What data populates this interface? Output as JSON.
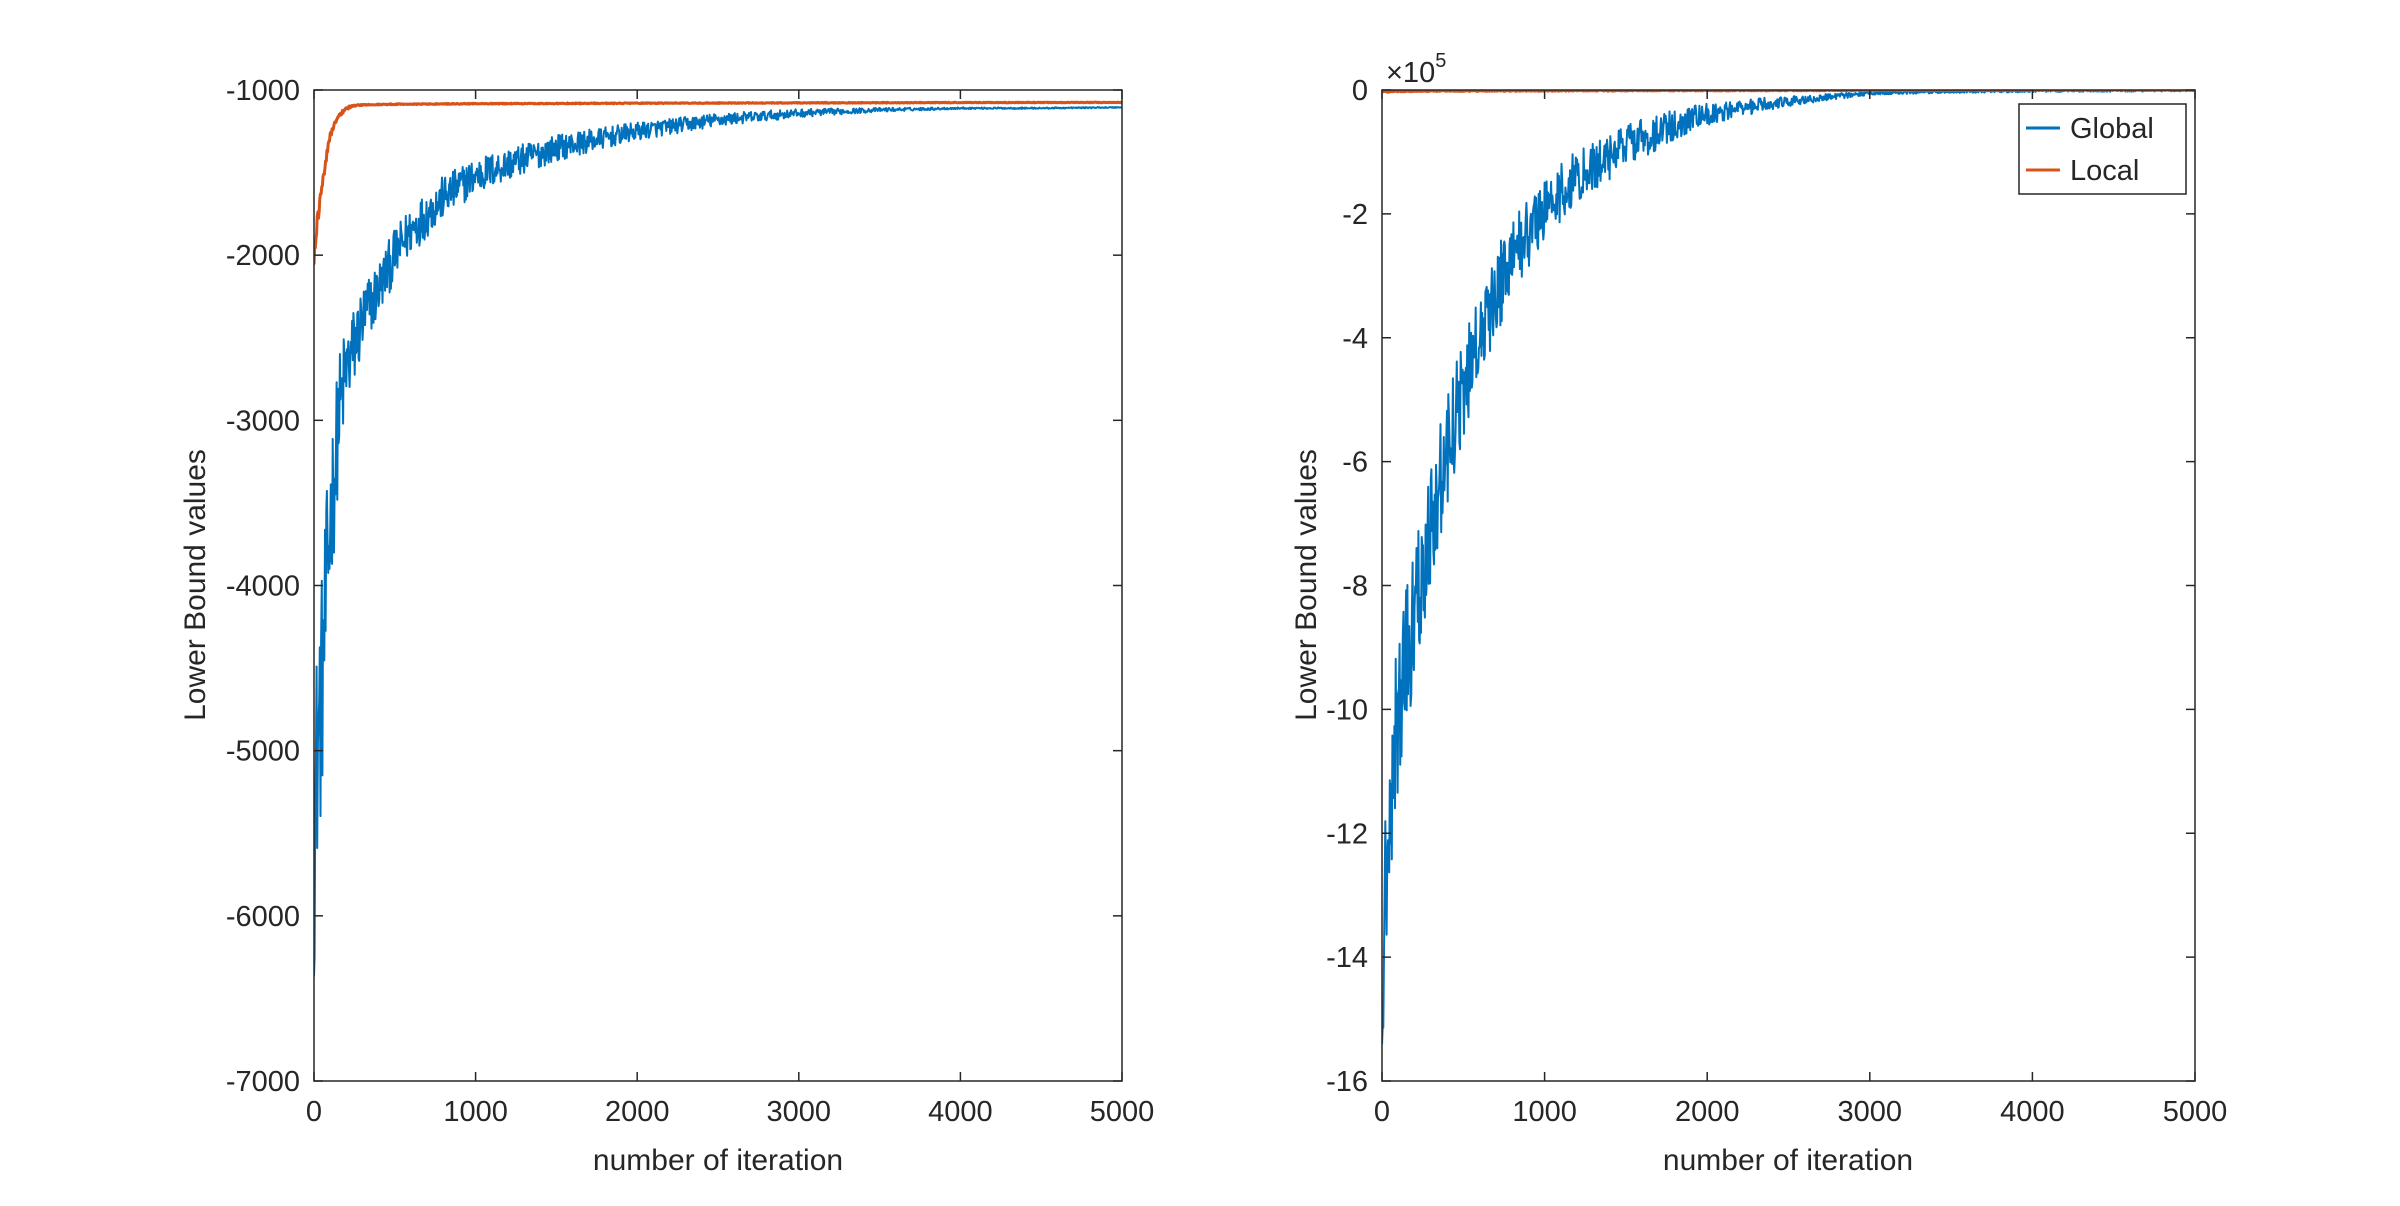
{
  "chart_data": [
    {
      "type": "line",
      "xlabel": "number of iteration",
      "ylabel": "Lower Bound values",
      "xlim": [
        0,
        5000
      ],
      "ylim": [
        -7000,
        -1000
      ],
      "xticks": [
        0,
        1000,
        2000,
        3000,
        4000,
        5000
      ],
      "yticks": [
        -7000,
        -6000,
        -5000,
        -4000,
        -3000,
        -2000,
        -1000
      ],
      "grid": false,
      "legend": null,
      "series": [
        {
          "color": "#0072BD",
          "noise": [
            [
              0,
              800
            ],
            [
              50,
              700
            ],
            [
              100,
              500
            ],
            [
              200,
              280
            ],
            [
              400,
              170
            ],
            [
              700,
              140
            ],
            [
              1000,
              110
            ],
            [
              1500,
              80
            ],
            [
              2000,
              55
            ],
            [
              2500,
              40
            ],
            [
              3000,
              25
            ],
            [
              3500,
              12
            ],
            [
              4000,
              5
            ],
            [
              5000,
              3
            ]
          ],
          "x": [
            0,
            20,
            50,
            80,
            100,
            130,
            150,
            180,
            200,
            250,
            300,
            400,
            500,
            600,
            800,
            1000,
            1200,
            1500,
            2000,
            2500,
            3000,
            3500,
            4000,
            4500,
            5000
          ],
          "y": [
            -5600,
            -5000,
            -4600,
            -4000,
            -3600,
            -3300,
            -3000,
            -2800,
            -2700,
            -2550,
            -2400,
            -2200,
            -2000,
            -1850,
            -1650,
            -1520,
            -1450,
            -1350,
            -1250,
            -1180,
            -1140,
            -1120,
            -1110,
            -1110,
            -1105
          ]
        },
        {
          "color": "#D95319",
          "noise": [
            [
              0,
              60
            ],
            [
              50,
              40
            ],
            [
              100,
              20
            ],
            [
              200,
              10
            ],
            [
              300,
              3
            ],
            [
              5000,
              2
            ]
          ],
          "x": [
            0,
            20,
            40,
            60,
            80,
            100,
            130,
            160,
            200,
            250,
            300,
            500,
            1000,
            2000,
            3000,
            4000,
            5000
          ],
          "y": [
            -2000,
            -1800,
            -1650,
            -1500,
            -1380,
            -1280,
            -1200,
            -1150,
            -1110,
            -1095,
            -1090,
            -1086,
            -1083,
            -1080,
            -1078,
            -1076,
            -1075
          ]
        }
      ]
    },
    {
      "type": "line",
      "xlabel": "number of iteration",
      "ylabel": "Lower Bound values",
      "xlim": [
        0,
        5000
      ],
      "ylim": [
        -16,
        0
      ],
      "xticks": [
        0,
        1000,
        2000,
        3000,
        4000,
        5000
      ],
      "yticks": [
        -16,
        -14,
        -12,
        -10,
        -8,
        -6,
        -4,
        -2,
        0
      ],
      "y_exponent_base": "×10",
      "y_exponent_power": "5",
      "grid": false,
      "legend": "top-right",
      "series": [
        {
          "name": "Global",
          "color": "#0072BD",
          "noise": [
            [
              0,
              1.6
            ],
            [
              50,
              1.5
            ],
            [
              100,
              1.3
            ],
            [
              200,
              1.1
            ],
            [
              400,
              0.9
            ],
            [
              700,
              0.7
            ],
            [
              1000,
              0.5
            ],
            [
              1500,
              0.35
            ],
            [
              2000,
              0.18
            ],
            [
              2500,
              0.08
            ],
            [
              3000,
              0.03
            ],
            [
              5000,
              0.02
            ]
          ],
          "x": [
            0,
            20,
            50,
            80,
            100,
            150,
            200,
            300,
            400,
            500,
            600,
            700,
            800,
            1000,
            1200,
            1500,
            1800,
            2000,
            2300,
            2600,
            3000,
            3500,
            4000,
            5000
          ],
          "y": [
            -14.0,
            -13.0,
            -11.5,
            -10.5,
            -10.0,
            -9.2,
            -8.5,
            -7.0,
            -5.8,
            -4.8,
            -4.0,
            -3.3,
            -2.7,
            -1.9,
            -1.4,
            -0.9,
            -0.55,
            -0.4,
            -0.25,
            -0.15,
            -0.05,
            -0.02,
            -0.01,
            0.0
          ]
        },
        {
          "name": "Local",
          "color": "#D95319",
          "noise": [
            [
              0,
              0.01
            ],
            [
              5000,
              0.005
            ]
          ],
          "x": [
            0,
            100,
            300,
            1000,
            5000
          ],
          "y": [
            -0.03,
            -0.02,
            -0.015,
            -0.01,
            0.0
          ]
        }
      ]
    }
  ]
}
